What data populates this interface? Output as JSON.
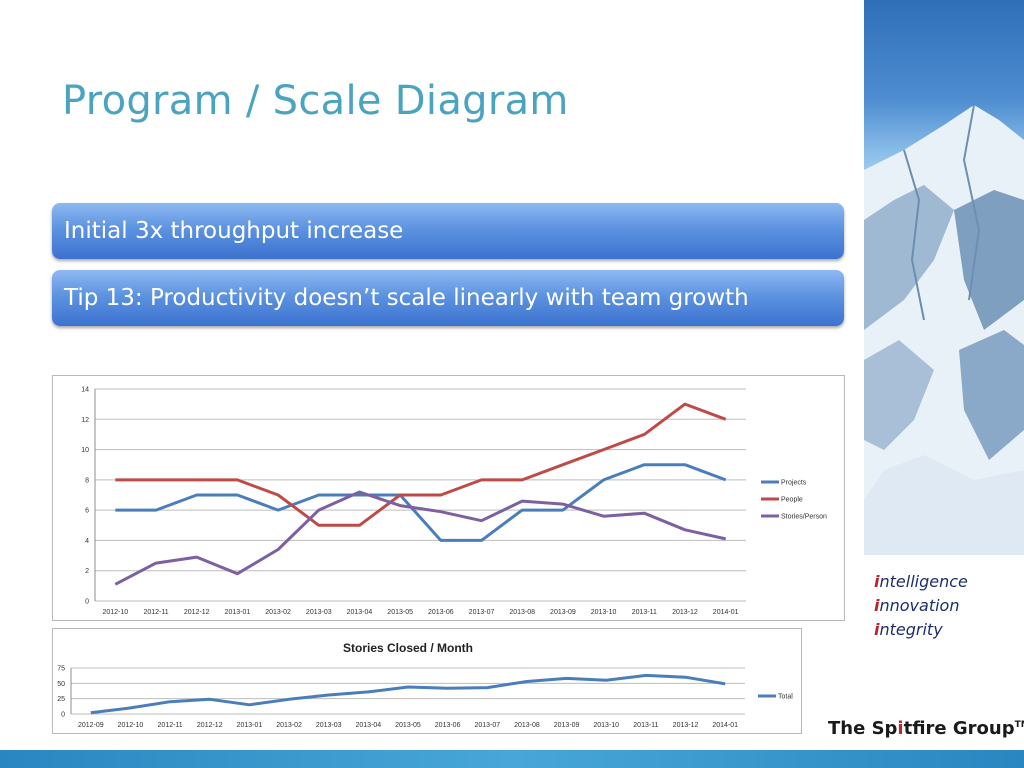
{
  "slide": {
    "title": "Program / Scale Diagram",
    "banner_1": "Initial 3x throughput increase",
    "banner_2": "Tip 13: Productivity doesn’t scale linearly with team growth"
  },
  "tagline": [
    {
      "initial": "i",
      "rest": "ntelligence"
    },
    {
      "initial": "i",
      "rest": "nnovation"
    },
    {
      "initial": "i",
      "rest": "ntegrity"
    }
  ],
  "logo": {
    "part1": "The Sp",
    "red_i": "i",
    "part2": "tfire Group",
    "tm": "TM"
  },
  "colors": {
    "title": "#4aa3bf",
    "banner": "#4b84d8",
    "projects": "#4a7ebb",
    "people": "#be4b48",
    "stories_person": "#7d60a0",
    "total": "#4a7ebb"
  },
  "chart_data": [
    {
      "type": "line",
      "title": "",
      "categories": [
        "2012-10",
        "2012-11",
        "2012-12",
        "2013-01",
        "2013-02",
        "2013-03",
        "2013-04",
        "2013-05",
        "2013-06",
        "2013-07",
        "2013-08",
        "2013-09",
        "2013-10",
        "2013-11",
        "2013-12",
        "2014-01"
      ],
      "ylim": [
        0,
        14
      ],
      "yticks": [
        0,
        2,
        4,
        6,
        8,
        10,
        12,
        14
      ],
      "grid": true,
      "legend": "right",
      "series": [
        {
          "name": "Projects",
          "color": "#4a7ebb",
          "values": [
            6,
            6,
            7,
            7,
            6,
            7,
            7,
            7,
            4,
            4,
            6,
            6,
            8,
            9,
            9,
            8
          ]
        },
        {
          "name": "People",
          "color": "#be4b48",
          "values": [
            8,
            8,
            8,
            8,
            7,
            5,
            5,
            7,
            7,
            8,
            8,
            9,
            10,
            11,
            13,
            12
          ]
        },
        {
          "name": "Stories/Person",
          "color": "#7d60a0",
          "values": [
            1.1,
            2.5,
            2.9,
            1.8,
            3.4,
            6.0,
            7.2,
            6.3,
            5.9,
            5.3,
            6.6,
            6.4,
            5.6,
            5.8,
            4.7,
            4.1
          ]
        }
      ]
    },
    {
      "type": "line",
      "title": "Stories Closed / Month",
      "categories": [
        "2012-09",
        "2012-10",
        "2012-11",
        "2012-12",
        "2013-01",
        "2013-02",
        "2013-03",
        "2013-04",
        "2013-05",
        "2013-06",
        "2013-07",
        "2013-08",
        "2013-09",
        "2013-10",
        "2013-11",
        "2013-12",
        "2014-01"
      ],
      "ylim": [
        0,
        75
      ],
      "yticks": [
        0,
        25,
        50,
        75
      ],
      "grid": true,
      "legend": "right",
      "series": [
        {
          "name": "Total",
          "color": "#4a7ebb",
          "values": [
            2,
            10,
            20,
            24,
            15,
            24,
            31,
            36,
            44,
            42,
            43,
            53,
            58,
            55,
            63,
            60,
            49
          ]
        }
      ]
    }
  ]
}
